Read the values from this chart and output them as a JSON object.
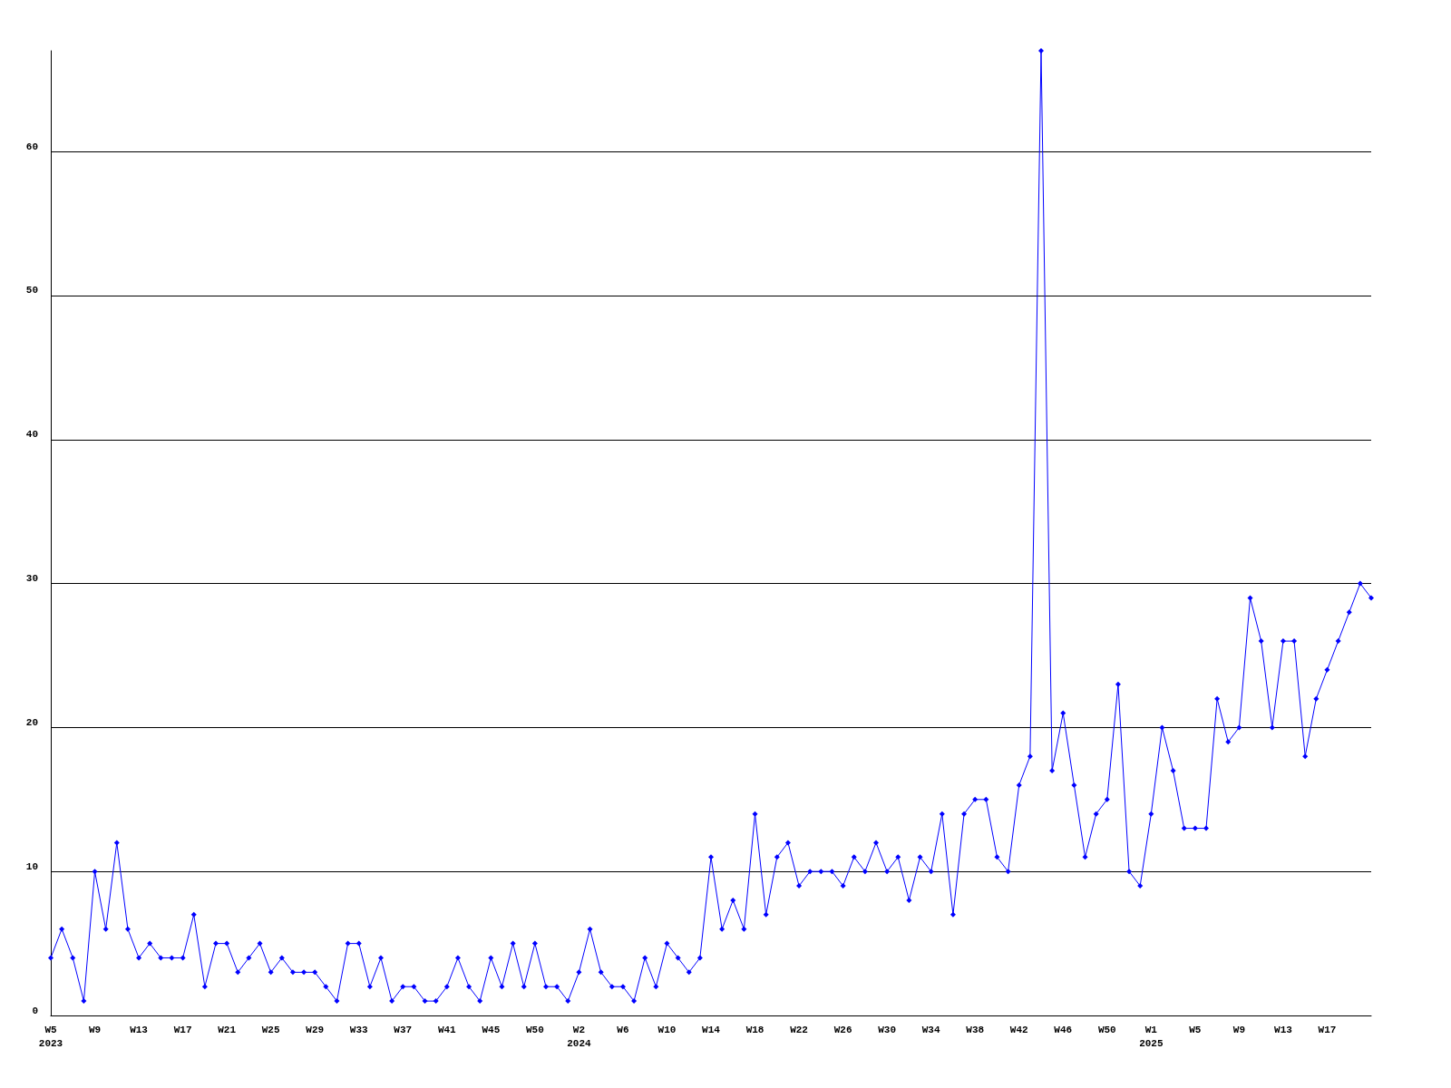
{
  "chart_data": {
    "type": "line",
    "categories": [
      "W5\n2023",
      null,
      null,
      null,
      "W9",
      null,
      null,
      null,
      "W13",
      null,
      null,
      null,
      "W17",
      null,
      null,
      null,
      "W21",
      null,
      null,
      null,
      "W25",
      null,
      null,
      null,
      "W29",
      null,
      null,
      null,
      "W33",
      null,
      null,
      null,
      "W37",
      null,
      null,
      null,
      "W41",
      null,
      null,
      null,
      "W45",
      null,
      null,
      null,
      "W50",
      null,
      null,
      null,
      "W2\n2024",
      null,
      null,
      null,
      "W6",
      null,
      null,
      null,
      "W10",
      null,
      null,
      null,
      "W14",
      null,
      null,
      null,
      "W18",
      null,
      null,
      null,
      "W22",
      null,
      null,
      null,
      "W26",
      null,
      null,
      null,
      "W30",
      null,
      null,
      null,
      "W34",
      null,
      null,
      null,
      "W38",
      null,
      null,
      null,
      "W42",
      null,
      null,
      null,
      "W46",
      null,
      null,
      null,
      "W50",
      null,
      null,
      null,
      "W1\n2025",
      null,
      null,
      null,
      "W5",
      null,
      null,
      null,
      "W9",
      null,
      null,
      null,
      "W13",
      null,
      null,
      null,
      "W17",
      null,
      null,
      null,
      null
    ],
    "series": [
      {
        "color": "#0000ff",
        "values": [
          4,
          6,
          4,
          1,
          10,
          6,
          12,
          6,
          4,
          5,
          4,
          4,
          4,
          7,
          2,
          5,
          5,
          3,
          4,
          5,
          3,
          4,
          3,
          3,
          3,
          2,
          1,
          5,
          5,
          2,
          4,
          1,
          2,
          2,
          1,
          1,
          2,
          4,
          2,
          1,
          4,
          2,
          5,
          2,
          5,
          2,
          2,
          1,
          3,
          6,
          3,
          2,
          2,
          1,
          4,
          2,
          5,
          4,
          3,
          4,
          11,
          6,
          8,
          6,
          14,
          7,
          11,
          12,
          9,
          10,
          10,
          10,
          9,
          11,
          10,
          12,
          10,
          11,
          8,
          11,
          10,
          14,
          7,
          14,
          15,
          15,
          11,
          10,
          16,
          18,
          67,
          17,
          21,
          16,
          11,
          14,
          15,
          23,
          10,
          9,
          14,
          20,
          17,
          13,
          13,
          13,
          22,
          19,
          20,
          29,
          26,
          20,
          26,
          26,
          18,
          22,
          24,
          26,
          28,
          30,
          29
        ]
      }
    ],
    "ylim": [
      0,
      67
    ],
    "yticks": [
      0,
      10,
      20,
      30,
      40,
      50,
      60
    ],
    "grid": "y",
    "marker": "diamond",
    "line_style": "solid"
  }
}
